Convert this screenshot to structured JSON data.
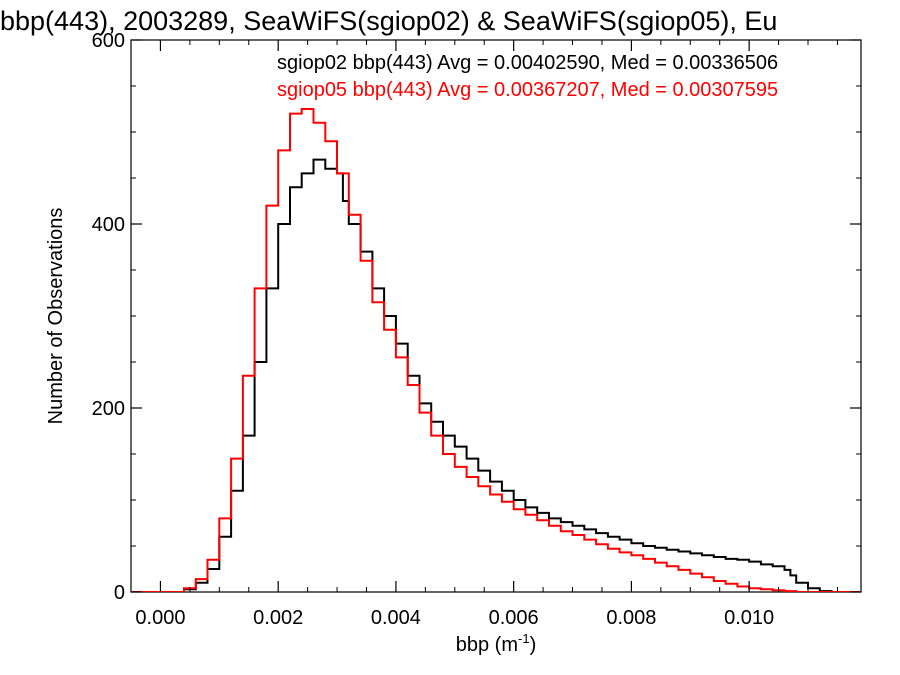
{
  "chart_data": {
    "type": "step-histogram",
    "title": "bbp(443), 2003289, SeaWiFS(sgiop02) & SeaWiFS(sgiop05), Eu",
    "xlabel": "bbp (m",
    "xlabel_sup": "-1",
    "xlabel_close": ")",
    "ylabel": "Number of Observations",
    "xlim": [
      -0.0005,
      0.0119
    ],
    "ylim": [
      0,
      600
    ],
    "x_ticks": [
      0.0,
      0.002,
      0.004,
      0.006,
      0.008,
      0.01
    ],
    "x_tick_labels": [
      "0.000",
      "0.002",
      "0.004",
      "0.006",
      "0.008",
      "0.010"
    ],
    "y_ticks": [
      0,
      200,
      400,
      600
    ],
    "y_tick_labels": [
      "0",
      "200",
      "400",
      "600"
    ],
    "grid": false,
    "legend_position": "top-right",
    "series": [
      {
        "name": "sgiop02",
        "color": "#000000",
        "legend_text": "sgiop02 bbp(443) Avg = 0.00402590, Med = 0.00336506",
        "points": [
          [
            -0.0005,
            0
          ],
          [
            0.0002,
            0
          ],
          [
            0.0004,
            3
          ],
          [
            0.0006,
            10
          ],
          [
            0.0008,
            25
          ],
          [
            0.001,
            60
          ],
          [
            0.0012,
            110
          ],
          [
            0.0014,
            170
          ],
          [
            0.0016,
            250
          ],
          [
            0.0018,
            330
          ],
          [
            0.002,
            400
          ],
          [
            0.0022,
            440
          ],
          [
            0.0024,
            455
          ],
          [
            0.0026,
            470
          ],
          [
            0.0028,
            460
          ],
          [
            0.003,
            455
          ],
          [
            0.0031,
            425
          ],
          [
            0.0032,
            400
          ],
          [
            0.0034,
            370
          ],
          [
            0.0036,
            330
          ],
          [
            0.0038,
            300
          ],
          [
            0.004,
            270
          ],
          [
            0.0042,
            235
          ],
          [
            0.0044,
            205
          ],
          [
            0.0046,
            185
          ],
          [
            0.0048,
            170
          ],
          [
            0.005,
            158
          ],
          [
            0.0052,
            145
          ],
          [
            0.0054,
            132
          ],
          [
            0.0056,
            120
          ],
          [
            0.0058,
            110
          ],
          [
            0.006,
            100
          ],
          [
            0.0062,
            92
          ],
          [
            0.0064,
            86
          ],
          [
            0.0066,
            80
          ],
          [
            0.0068,
            76
          ],
          [
            0.007,
            72
          ],
          [
            0.0072,
            68
          ],
          [
            0.0074,
            64
          ],
          [
            0.0076,
            60
          ],
          [
            0.0078,
            57
          ],
          [
            0.008,
            53
          ],
          [
            0.0082,
            50
          ],
          [
            0.0084,
            48
          ],
          [
            0.0086,
            46
          ],
          [
            0.0088,
            44
          ],
          [
            0.009,
            42
          ],
          [
            0.0092,
            40
          ],
          [
            0.0094,
            38
          ],
          [
            0.0096,
            36
          ],
          [
            0.0098,
            35
          ],
          [
            0.01,
            33
          ],
          [
            0.0102,
            30
          ],
          [
            0.0104,
            28
          ],
          [
            0.0106,
            24
          ],
          [
            0.0107,
            18
          ],
          [
            0.0108,
            10
          ],
          [
            0.011,
            4
          ],
          [
            0.0112,
            1
          ],
          [
            0.0114,
            0
          ],
          [
            0.0119,
            0
          ]
        ]
      },
      {
        "name": "sgiop05",
        "color": "#ff0000",
        "legend_text": "sgiop05 bbp(443) Avg = 0.00367207, Med = 0.00307595",
        "points": [
          [
            -0.0005,
            0
          ],
          [
            0.0002,
            0
          ],
          [
            0.0004,
            4
          ],
          [
            0.0006,
            14
          ],
          [
            0.0008,
            35
          ],
          [
            0.001,
            80
          ],
          [
            0.0012,
            145
          ],
          [
            0.0014,
            235
          ],
          [
            0.0016,
            330
          ],
          [
            0.0018,
            420
          ],
          [
            0.002,
            480
          ],
          [
            0.0022,
            520
          ],
          [
            0.0024,
            525
          ],
          [
            0.0026,
            510
          ],
          [
            0.0028,
            490
          ],
          [
            0.003,
            455
          ],
          [
            0.0032,
            410
          ],
          [
            0.0034,
            360
          ],
          [
            0.0036,
            315
          ],
          [
            0.0038,
            285
          ],
          [
            0.004,
            255
          ],
          [
            0.0042,
            225
          ],
          [
            0.0044,
            195
          ],
          [
            0.0046,
            170
          ],
          [
            0.0048,
            150
          ],
          [
            0.005,
            136
          ],
          [
            0.0052,
            125
          ],
          [
            0.0054,
            115
          ],
          [
            0.0056,
            106
          ],
          [
            0.0058,
            98
          ],
          [
            0.006,
            90
          ],
          [
            0.0062,
            84
          ],
          [
            0.0064,
            78
          ],
          [
            0.0066,
            72
          ],
          [
            0.0068,
            66
          ],
          [
            0.007,
            62
          ],
          [
            0.0072,
            57
          ],
          [
            0.0074,
            52
          ],
          [
            0.0076,
            47
          ],
          [
            0.0078,
            43
          ],
          [
            0.008,
            40
          ],
          [
            0.0082,
            36
          ],
          [
            0.0084,
            32
          ],
          [
            0.0086,
            28
          ],
          [
            0.0088,
            24
          ],
          [
            0.009,
            20
          ],
          [
            0.0092,
            16
          ],
          [
            0.0094,
            12
          ],
          [
            0.0096,
            9
          ],
          [
            0.0098,
            6
          ],
          [
            0.01,
            4
          ],
          [
            0.0102,
            3
          ],
          [
            0.0104,
            2
          ],
          [
            0.0106,
            1
          ],
          [
            0.0108,
            0
          ],
          [
            0.0119,
            0
          ]
        ]
      }
    ]
  }
}
